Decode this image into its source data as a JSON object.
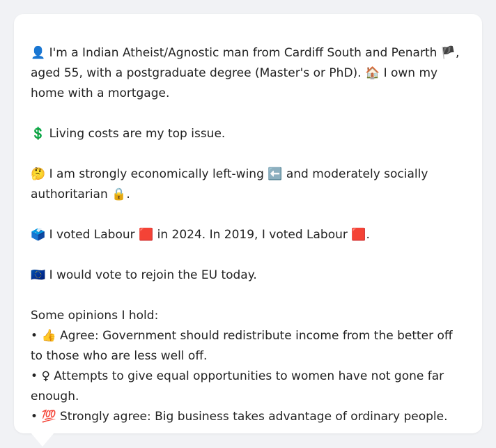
{
  "profile": {
    "line1_icon": "👤",
    "line1_text_a": "I'm a Indian Atheist/Agnostic man from Cardiff South and Penarth",
    "flag_icon": "🏴",
    "line1_text_b": ", aged 55, with a postgraduate degree (Master's or PhD).",
    "home_icon": "🏠",
    "line1_text_c": "I own my home with a mortgage."
  },
  "issue": {
    "icon": "💲",
    "text": "Living costs are my top issue."
  },
  "politics": {
    "icon": "🤔",
    "text_a": "I am strongly economically left-wing",
    "left_icon": "⬅️",
    "text_b": "and moderately socially authoritarian",
    "lock_icon": "🔒",
    "text_c": "."
  },
  "votes": {
    "icon": "🗳️",
    "text_a": "I voted Labour",
    "red_icon": "🟥",
    "text_b": "in 2024. In 2019, I voted Labour",
    "red_icon2": "🟥",
    "text_c": "."
  },
  "eu": {
    "icon": "🇪🇺",
    "text": "I would vote to rejoin the EU today."
  },
  "opinions": {
    "heading": "Some opinions I hold:",
    "items": [
      {
        "bullet": "•",
        "icon": "👍",
        "text": "Agree: Government should redistribute income from the better off to those who are less well off."
      },
      {
        "bullet": "•",
        "icon": "♀",
        "text": "Attempts to give equal opportunities to women have not gone far enough."
      },
      {
        "bullet": "•",
        "icon": "💯",
        "text": "Strongly agree: Big business takes advantage of ordinary people."
      }
    ]
  }
}
